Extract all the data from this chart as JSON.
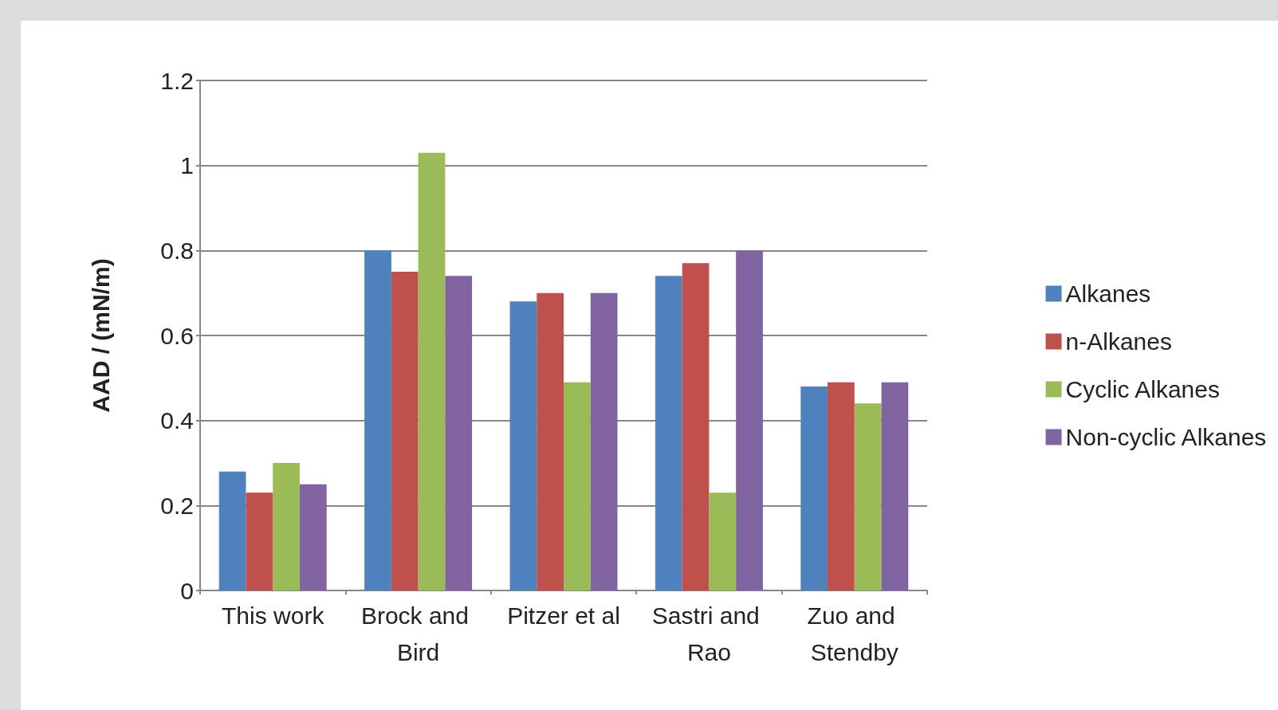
{
  "chart_data": {
    "type": "bar",
    "ylabel": "AAD / (mN/m)",
    "categories": [
      "This work",
      "Brock and Bird",
      "Pitzer et al",
      "Sastri and Rao",
      "Zuo and Stendby"
    ],
    "series": [
      {
        "name": "Alkanes",
        "color": "#4f81bd",
        "values": [
          0.28,
          0.8,
          0.68,
          0.74,
          0.48
        ]
      },
      {
        "name": "n-Alkanes",
        "color": "#c0504d",
        "values": [
          0.23,
          0.75,
          0.7,
          0.77,
          0.49
        ]
      },
      {
        "name": "Cyclic Alkanes",
        "color": "#9bbb59",
        "values": [
          0.3,
          1.03,
          0.49,
          0.23,
          0.44
        ]
      },
      {
        "name": "Non-cyclic Alkanes",
        "color": "#8064a2",
        "values": [
          0.25,
          0.74,
          0.7,
          0.8,
          0.49
        ]
      }
    ],
    "ylim": [
      0,
      1.2
    ],
    "yticks": [
      0,
      0.2,
      0.4,
      0.6,
      0.8,
      1,
      1.2
    ],
    "grid": "y",
    "legend": "right"
  }
}
